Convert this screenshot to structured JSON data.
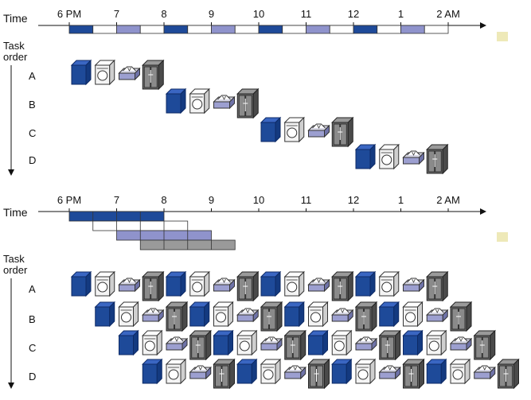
{
  "time_label": "Time",
  "task_order_label": [
    "Task",
    "order"
  ],
  "hours": [
    "6 PM",
    "7",
    "8",
    "9",
    "10",
    "11",
    "12",
    "1",
    "2 AM"
  ],
  "tasks": [
    "A",
    "B",
    "C",
    "D"
  ],
  "steps": [
    "washer",
    "dryer",
    "folding",
    "closet"
  ],
  "colors": {
    "washer": "#1e4a99",
    "dryer": "#f4f4f4",
    "folding": "#9c9fd0",
    "closet": "#707070",
    "slot_dark": "#1e4a99",
    "slot_light": "#8f93cc",
    "fold_gray": "#9a9a9a",
    "marker": "#eee9b8"
  },
  "sequential": {
    "start_hour": [
      0,
      2,
      4,
      6
    ],
    "stage_hours": 0.5
  },
  "pipelined": {
    "start_hour": [
      0,
      0.5,
      1,
      1.5
    ],
    "stage_hours": 0.5,
    "repeat_every_hours": 2
  }
}
